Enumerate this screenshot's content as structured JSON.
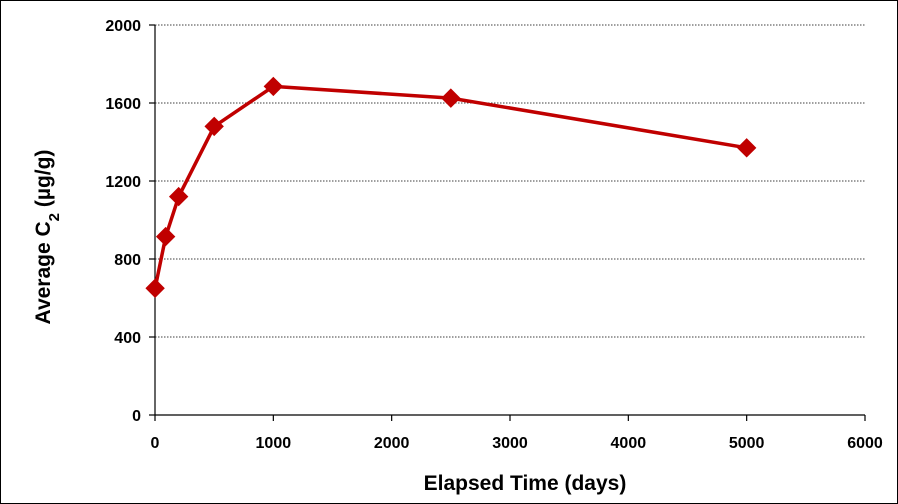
{
  "chart_data": {
    "type": "line",
    "title": "",
    "xlabel": "Elapsed Time (days)",
    "ylabel_main": "Average C",
    "ylabel_sub": "2",
    "ylabel_unit": " (µg/g)",
    "xlim": [
      0,
      6000
    ],
    "ylim": [
      0,
      2000
    ],
    "xticks": [
      0,
      1000,
      2000,
      3000,
      4000,
      5000,
      6000
    ],
    "yticks": [
      0,
      400,
      800,
      1200,
      1600,
      2000
    ],
    "grid": "horizontal",
    "legend": "none",
    "series": [
      {
        "color": "#c00000",
        "marker": "diamond",
        "x": [
          1,
          90,
          200,
          500,
          1000,
          2500,
          5000
        ],
        "y": [
          650,
          915,
          1120,
          1480,
          1685,
          1625,
          1370
        ]
      }
    ]
  }
}
